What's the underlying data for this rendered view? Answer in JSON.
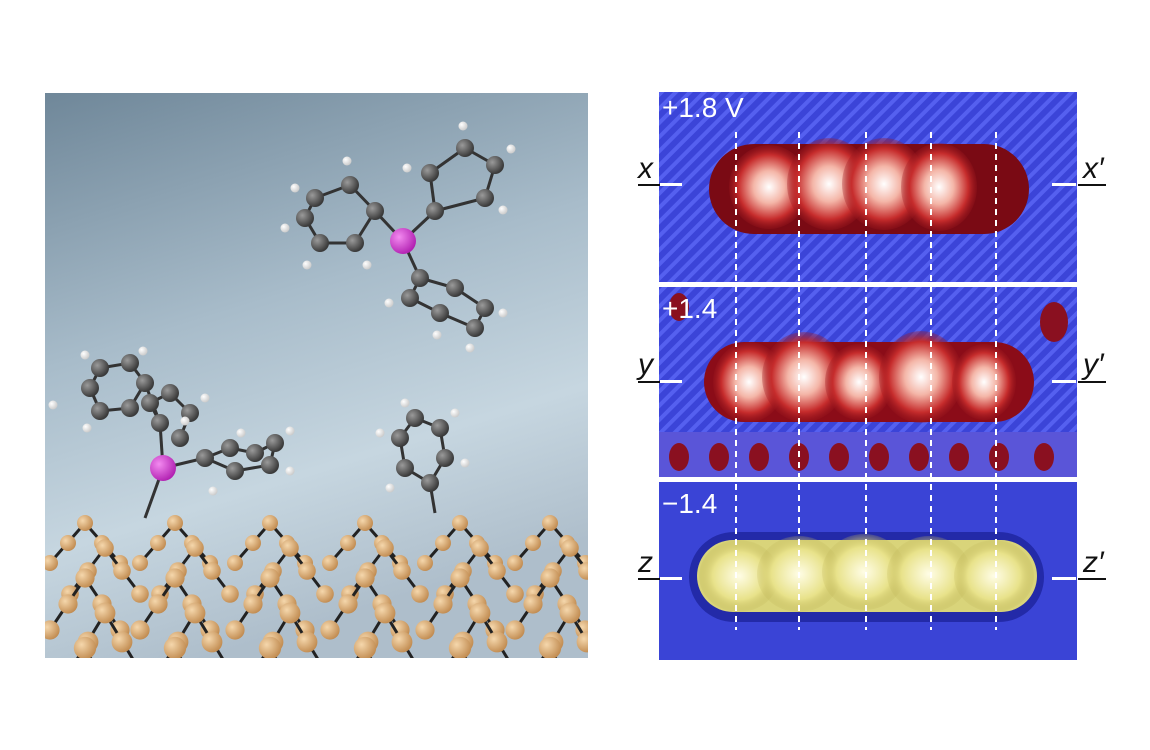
{
  "panels": [
    {
      "bias": "+1.8 V",
      "left_label": "x",
      "right_label": "x′"
    },
    {
      "bias": "+1.4",
      "left_label": "y",
      "right_label": "y′"
    },
    {
      "bias": "−1.4",
      "left_label": "z",
      "right_label": "z′"
    }
  ]
}
